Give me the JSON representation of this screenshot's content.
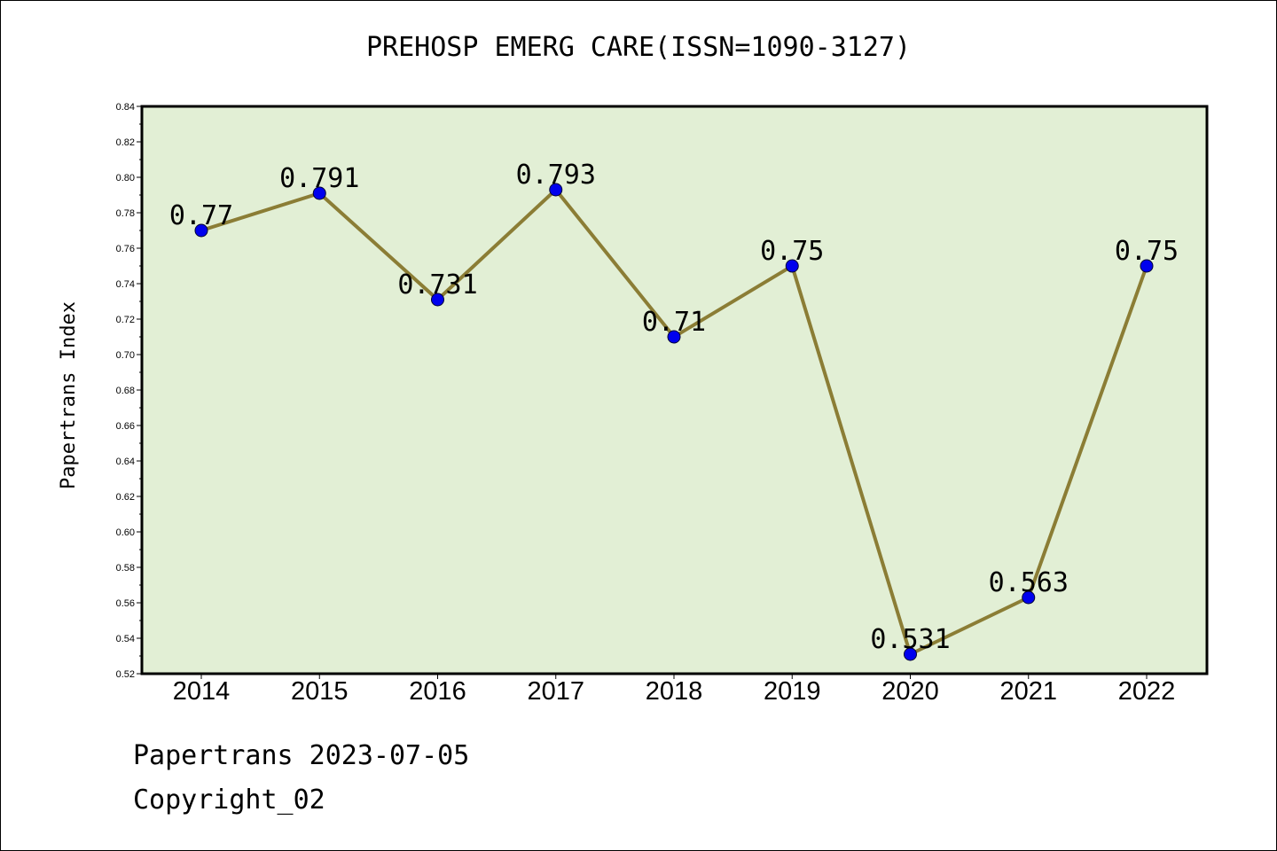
{
  "chart_data": {
    "type": "line",
    "title": "PREHOSP EMERG CARE(ISSN=1090-3127)",
    "ylabel": "Papertrans Index",
    "xlabel": "",
    "categories": [
      "2014",
      "2015",
      "2016",
      "2017",
      "2018",
      "2019",
      "2020",
      "2021",
      "2022"
    ],
    "values": [
      0.77,
      0.791,
      0.731,
      0.793,
      0.71,
      0.75,
      0.531,
      0.563,
      0.75
    ],
    "value_labels": [
      "0.77",
      "0.791",
      "0.731",
      "0.793",
      "0.71",
      "0.75",
      "0.531",
      "0.563",
      "0.75"
    ],
    "ylim": [
      0.52,
      0.84
    ],
    "yticks": [
      "0.52",
      "0.54",
      "0.56",
      "0.58",
      "0.60",
      "0.62",
      "0.64",
      "0.66",
      "0.68",
      "0.70",
      "0.72",
      "0.74",
      "0.76",
      "0.78",
      "0.80",
      "0.82",
      "0.84"
    ],
    "grid": false,
    "colors": {
      "plot_background": "#e2efd5",
      "line": "#8b7d35",
      "marker": "#0000ee"
    }
  },
  "footer": {
    "line1": "Papertrans 2023-07-05",
    "line2": "Copyright_02"
  }
}
